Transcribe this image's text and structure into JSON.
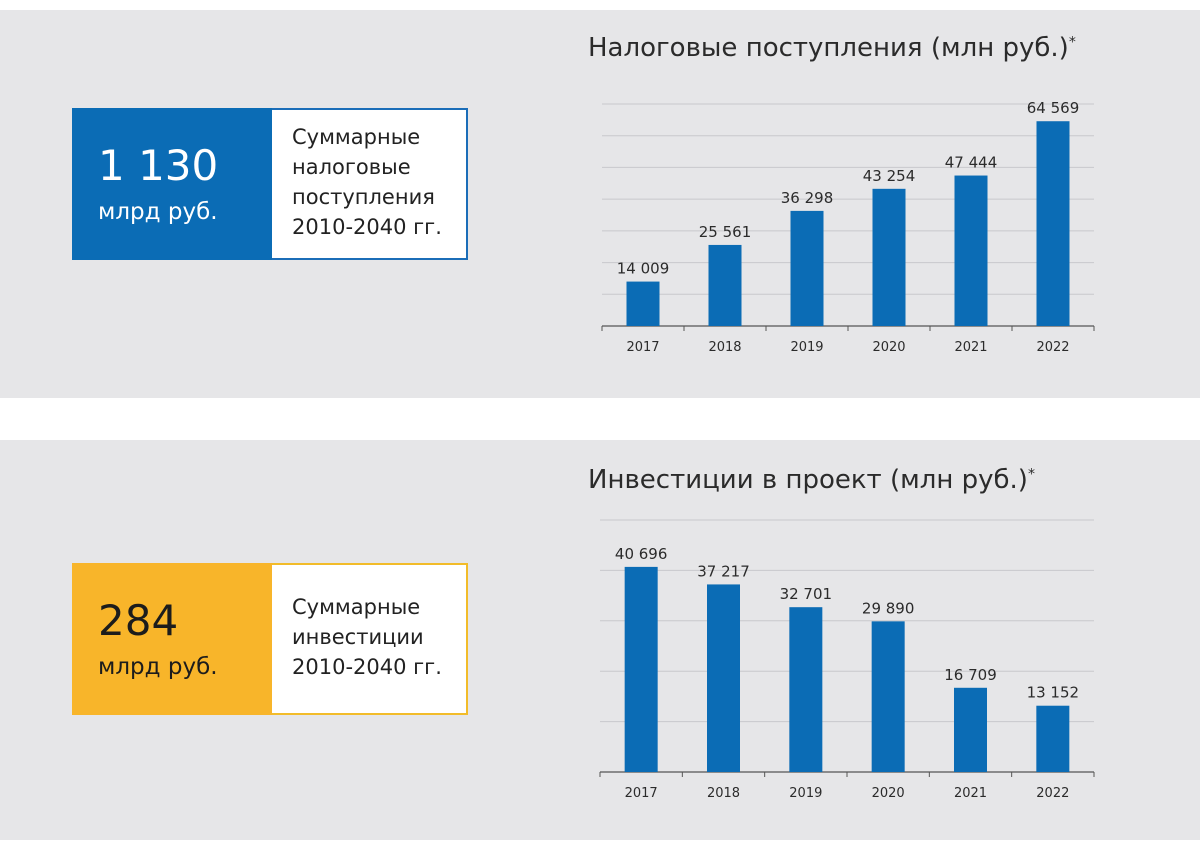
{
  "panels": {
    "tax": {
      "kpi_value": "1 130",
      "kpi_unit": "млрд руб.",
      "kpi_lines": [
        "Суммарные",
        "налоговые",
        "поступления",
        "2010-2040 гг."
      ],
      "title": "Налоговые поступления (млн руб.)",
      "title_mark": "*"
    },
    "investment": {
      "kpi_value": "284",
      "kpi_unit": "млрд руб.",
      "kpi_lines": [
        "Суммарные",
        "инвестиции",
        "2010-2040  гг."
      ],
      "title": "Инвестиции в проект (млн руб.)",
      "title_mark": "*"
    }
  },
  "chart_data": [
    {
      "type": "bar",
      "title": "Налоговые поступления (млн руб.)*",
      "categories": [
        "2017",
        "2018",
        "2019",
        "2020",
        "2021",
        "2022"
      ],
      "values": [
        14009,
        25561,
        36298,
        43254,
        47444,
        64569
      ],
      "value_labels": [
        "14 009",
        "25 561",
        "36 298",
        "43 254",
        "47 444",
        "64 569"
      ],
      "ylim": [
        0,
        70000
      ],
      "grid": true,
      "legend": "none",
      "bar_color": "#0b6cb5"
    },
    {
      "type": "bar",
      "title": "Инвестиции в проект (млн руб.)*",
      "categories": [
        "2017",
        "2018",
        "2019",
        "2020",
        "2021",
        "2022"
      ],
      "values": [
        40696,
        37217,
        32701,
        29890,
        16709,
        13152
      ],
      "value_labels": [
        "40 696",
        "37 217",
        "32 701",
        "29 890",
        "16 709",
        "13 152"
      ],
      "ylim": [
        0,
        50000
      ],
      "grid": true,
      "legend": "none",
      "bar_color": "#0b6cb5"
    }
  ]
}
